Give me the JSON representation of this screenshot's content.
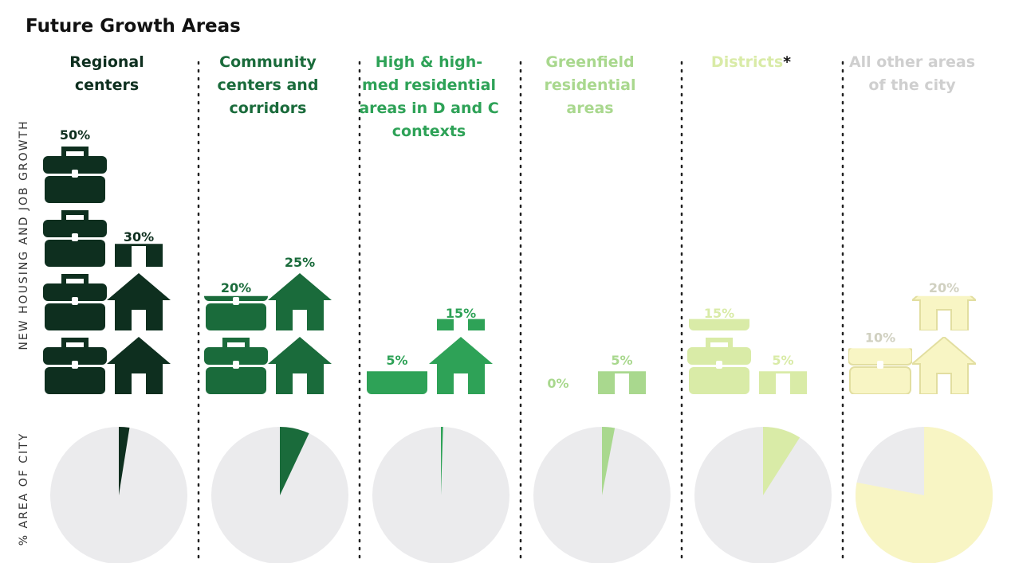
{
  "chart_data": {
    "type": "pictograph",
    "title": "Future Growth Areas",
    "growth_label": "NEW HOUSING AND JOB GROWTH",
    "area_label": "% AREA OF CITY",
    "note_mark": "*",
    "categories": [
      "Regional centers",
      "Community centers and corridors",
      "High & high-med residential areas in D and C contexts",
      "Greenfield residential areas",
      "Districts",
      "All other areas of the city"
    ],
    "colors": [
      "#0e2f1f",
      "#1a6b3b",
      "#2ea257",
      "#a9d88e",
      "#d9eba7",
      "#f8f5c4"
    ],
    "label_colors": [
      "#0e2f1f",
      "#1a6b3b",
      "#2ea257",
      "#a9d88e",
      "#d9eba7",
      "#cfcfcf"
    ],
    "unit": 12.5,
    "series": [
      {
        "icon": "briefcase",
        "values": [
          50,
          20,
          5,
          0,
          15,
          10
        ],
        "value_labels": [
          "50%",
          "20%",
          "5%",
          "0%",
          "15%",
          "10%"
        ]
      },
      {
        "icon": "house",
        "values": [
          30,
          25,
          15,
          5,
          5,
          20
        ],
        "value_labels": [
          "30%",
          "25%",
          "15%",
          "5%",
          "5%",
          "20%"
        ]
      }
    ],
    "area_share": [
      2.5,
      7,
      0.5,
      3,
      9,
      78
    ],
    "pie_background": "#ebebed"
  }
}
